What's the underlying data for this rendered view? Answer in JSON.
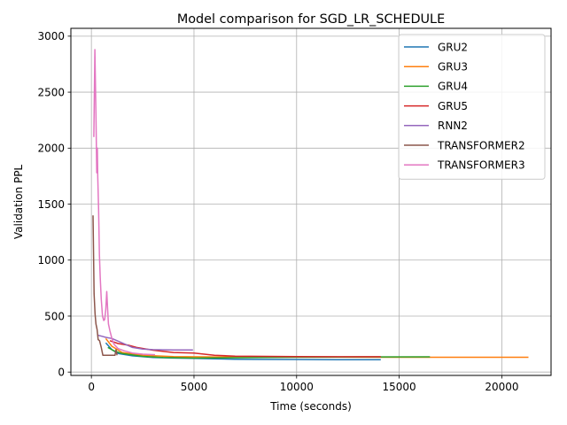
{
  "chart_data": {
    "type": "line",
    "title": "Model comparison for SGD_LR_SCHEDULE",
    "xlabel": "Time (seconds)",
    "ylabel": "Validation PPL",
    "xlim": [
      -1000,
      22400
    ],
    "ylim": [
      -30,
      3070
    ],
    "xticks": [
      0,
      5000,
      10000,
      15000,
      20000
    ],
    "yticks": [
      0,
      500,
      1000,
      1500,
      2000,
      2500,
      3000
    ],
    "grid": true,
    "legend_position": "top-right",
    "series": [
      {
        "name": "GRU2",
        "color": "#1f77b4",
        "points": [
          [
            700,
            260
          ],
          [
            1000,
            200
          ],
          [
            1300,
            165
          ],
          [
            2000,
            145
          ],
          [
            3000,
            130
          ],
          [
            4000,
            125
          ],
          [
            5000,
            122
          ],
          [
            6000,
            118
          ],
          [
            7000,
            115
          ],
          [
            8000,
            113
          ],
          [
            10000,
            112
          ],
          [
            12000,
            111
          ],
          [
            14100,
            110
          ]
        ]
      },
      {
        "name": "GRU3",
        "color": "#ff7f0e",
        "points": [
          [
            700,
            300
          ],
          [
            1000,
            230
          ],
          [
            1500,
            175
          ],
          [
            2500,
            150
          ],
          [
            4000,
            138
          ],
          [
            6000,
            135
          ],
          [
            9000,
            133
          ],
          [
            12000,
            133
          ],
          [
            15000,
            132
          ],
          [
            18000,
            132
          ],
          [
            21300,
            132
          ]
        ]
      },
      {
        "name": "GRU4",
        "color": "#2ca02c",
        "points": [
          [
            800,
            220
          ],
          [
            1100,
            190
          ],
          [
            1500,
            165
          ],
          [
            2500,
            140
          ],
          [
            3500,
            130
          ],
          [
            5000,
            125
          ],
          [
            7000,
            128
          ],
          [
            10000,
            133
          ],
          [
            13000,
            135
          ],
          [
            16500,
            136
          ]
        ]
      },
      {
        "name": "GRU5",
        "color": "#d62728",
        "points": [
          [
            900,
            280
          ],
          [
            1300,
            255
          ],
          [
            1800,
            240
          ],
          [
            2200,
            220
          ],
          [
            3000,
            195
          ],
          [
            4000,
            175
          ],
          [
            5000,
            170
          ],
          [
            6000,
            150
          ],
          [
            7000,
            142
          ],
          [
            8500,
            140
          ],
          [
            10000,
            138
          ],
          [
            12000,
            137
          ],
          [
            14100,
            137
          ]
        ]
      },
      {
        "name": "RNN2",
        "color": "#9467bd",
        "points": [
          [
            300,
            330
          ],
          [
            500,
            320
          ],
          [
            700,
            310
          ],
          [
            1000,
            300
          ],
          [
            1500,
            260
          ],
          [
            2000,
            220
          ],
          [
            2500,
            205
          ],
          [
            3000,
            200
          ],
          [
            4000,
            198
          ],
          [
            4950,
            198
          ]
        ]
      },
      {
        "name": "TRANSFORMER2",
        "color": "#8c564b",
        "points": [
          [
            80,
            1400
          ],
          [
            130,
            700
          ],
          [
            180,
            520
          ],
          [
            220,
            430
          ],
          [
            280,
            380
          ],
          [
            330,
            290
          ],
          [
            400,
            280
          ],
          [
            480,
            220
          ],
          [
            560,
            150
          ],
          [
            800,
            150
          ],
          [
            1150,
            150
          ],
          [
            1200,
            200
          ],
          [
            1250,
            150
          ]
        ]
      },
      {
        "name": "TRANSFORMER3",
        "color": "#e377c2",
        "points": [
          [
            120,
            2100
          ],
          [
            170,
            2880
          ],
          [
            220,
            2300
          ],
          [
            260,
            1780
          ],
          [
            290,
            2000
          ],
          [
            310,
            1760
          ],
          [
            350,
            1450
          ],
          [
            390,
            1050
          ],
          [
            430,
            850
          ],
          [
            480,
            650
          ],
          [
            540,
            500
          ],
          [
            600,
            460
          ],
          [
            650,
            470
          ],
          [
            700,
            560
          ],
          [
            750,
            720
          ],
          [
            790,
            560
          ],
          [
            830,
            430
          ],
          [
            900,
            370
          ],
          [
            1000,
            300
          ],
          [
            1100,
            250
          ],
          [
            1300,
            210
          ],
          [
            1600,
            190
          ],
          [
            2000,
            170
          ],
          [
            2500,
            160
          ],
          [
            3100,
            155
          ]
        ]
      }
    ]
  }
}
